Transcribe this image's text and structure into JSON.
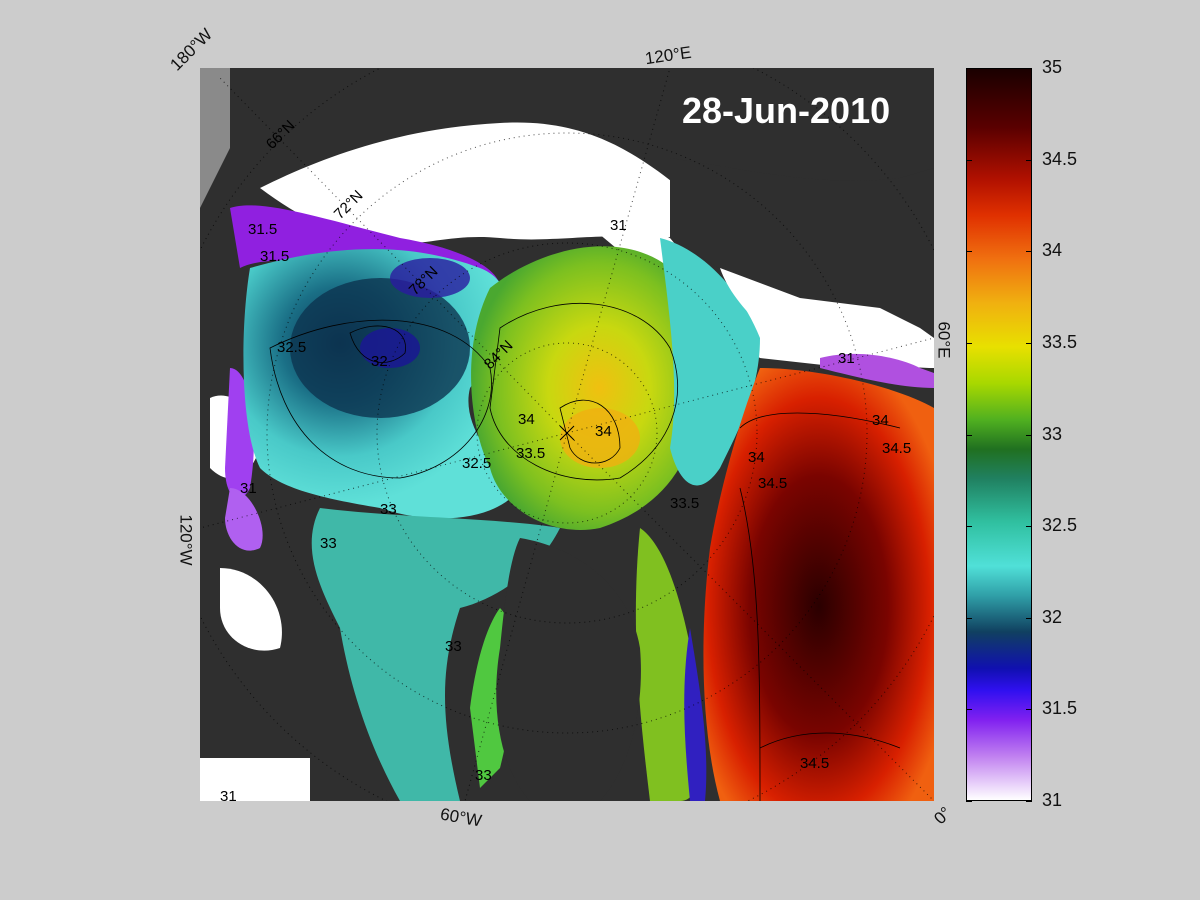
{
  "title": "28-Jun-2010",
  "longitude_labels": [
    "180°W",
    "120°E",
    "60°E",
    "0°",
    "60°W",
    "120°W"
  ],
  "latitude_labels": [
    "66°N",
    "72°N",
    "78°N",
    "84°N"
  ],
  "contour_labels": [
    "31",
    "31.5",
    "32",
    "32.5",
    "33",
    "33.5",
    "34",
    "34.5"
  ],
  "colorbar": {
    "min": 31,
    "max": 35,
    "ticks": [
      "35",
      "34.5",
      "34",
      "33.5",
      "33",
      "32.5",
      "32",
      "31.5",
      "31"
    ]
  },
  "colors": {
    "background": "#cccccc",
    "land": "#2f2f2f",
    "ice": "#ffffff",
    "low_salinity": "#a040f0",
    "high_salinity": "#3a0000"
  }
}
